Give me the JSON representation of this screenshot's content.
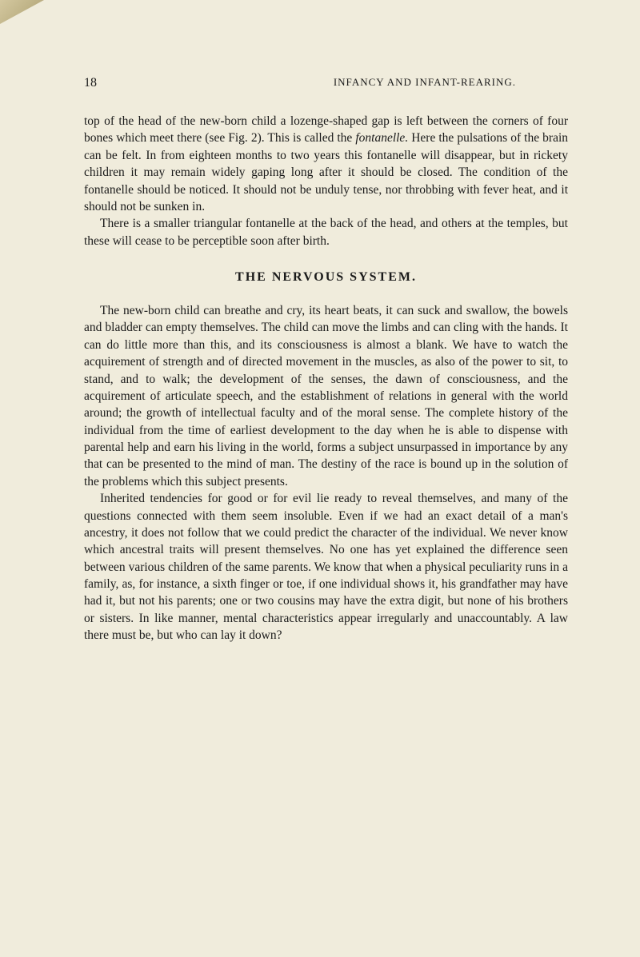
{
  "page": {
    "number": "18",
    "running_head": "INFANCY AND INFANT-REARING.",
    "paragraph1": "top of the head of the new-born child a lozenge-shaped gap is left between the corners of four bones which meet there (see Fig. 2). This is called the ",
    "fontanelle_word": "fontanelle.",
    "paragraph1_cont": " Here the pulsations of the brain can be felt. In from eighteen months to two years this fontanelle will disappear, but in rickety children it may remain widely gaping long after it should be closed. The condition of the fontanelle should be noticed. It should not be unduly tense, nor throbbing with fever heat, and it should not be sunken in.",
    "paragraph2": "There is a smaller triangular fontanelle at the back of the head, and others at the temples, but these will cease to be perceptible soon after birth.",
    "section_heading": "THE NERVOUS SYSTEM.",
    "paragraph3": "The new-born child can breathe and cry, its heart beats, it can suck and swallow, the bowels and bladder can empty themselves. The child can move the limbs and can cling with the hands. It can do little more than this, and its consciousness is almost a blank. We have to watch the acquirement of strength and of directed movement in the muscles, as also of the power to sit, to stand, and to walk; the development of the senses, the dawn of consciousness, and the acquirement of articulate speech, and the establishment of relations in general with the world around; the growth of intellectual faculty and of the moral sense. The complete history of the individual from the time of earliest development to the day when he is able to dispense with parental help and earn his living in the world, forms a subject unsurpassed in importance by any that can be presented to the mind of man. The destiny of the race is bound up in the solution of the problems which this subject presents.",
    "paragraph4": "Inherited tendencies for good or for evil lie ready to reveal themselves, and many of the questions connected with them seem insoluble. Even if we had an exact detail of a man's ancestry, it does not follow that we could predict the character of the individual. We never know which ancestral traits will present themselves. No one has yet explained the difference seen between various children of the same parents. We know that when a physical peculiarity runs in a family, as, for instance, a sixth finger or toe, if one individual shows it, his grandfather may have had it, but not his parents; one or two cousins may have the extra digit, but none of his brothers or sisters. In like manner, mental characteristics appear irregularly and unaccountably. A law there must be, but who can lay it down?"
  },
  "colors": {
    "background": "#f0ecdc",
    "text": "#1a1a1a"
  }
}
